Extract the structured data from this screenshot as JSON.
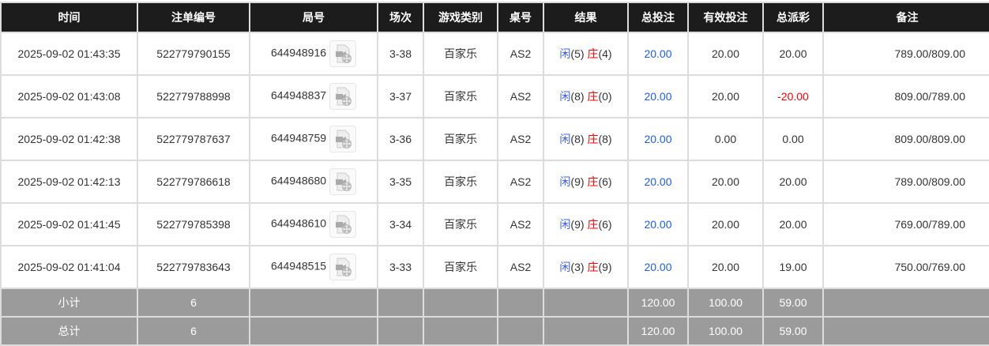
{
  "headers": [
    "时间",
    "注单编号",
    "局号",
    "场次",
    "游戏类别",
    "桌号",
    "结果",
    "总投注",
    "有效投注",
    "总派彩",
    "备注"
  ],
  "rows": [
    {
      "time": "2025-09-02 01:43:35",
      "bet_id": "522779790155",
      "round_id": "644948916",
      "shoe": "3-38",
      "game": "百家乐",
      "table": "AS2",
      "player_label": "闲",
      "player": "(5)",
      "banker_label": "庄",
      "banker": "(4)",
      "total_bet": "20.00",
      "valid_bet": "20.00",
      "payout": "20.00",
      "payout_negative": false,
      "remark": "789.00/809.00"
    },
    {
      "time": "2025-09-02 01:43:08",
      "bet_id": "522779788998",
      "round_id": "644948837",
      "shoe": "3-37",
      "game": "百家乐",
      "table": "AS2",
      "player_label": "闲",
      "player": "(8)",
      "banker_label": "庄",
      "banker": "(0)",
      "total_bet": "20.00",
      "valid_bet": "20.00",
      "payout": "-20.00",
      "payout_negative": true,
      "remark": "809.00/789.00"
    },
    {
      "time": "2025-09-02 01:42:38",
      "bet_id": "522779787637",
      "round_id": "644948759",
      "shoe": "3-36",
      "game": "百家乐",
      "table": "AS2",
      "player_label": "闲",
      "player": "(8)",
      "banker_label": "庄",
      "banker": "(8)",
      "total_bet": "20.00",
      "valid_bet": "0.00",
      "payout": "0.00",
      "payout_negative": false,
      "remark": "809.00/809.00"
    },
    {
      "time": "2025-09-02 01:42:13",
      "bet_id": "522779786618",
      "round_id": "644948680",
      "shoe": "3-35",
      "game": "百家乐",
      "table": "AS2",
      "player_label": "闲",
      "player": "(9)",
      "banker_label": "庄",
      "banker": "(6)",
      "total_bet": "20.00",
      "valid_bet": "20.00",
      "payout": "20.00",
      "payout_negative": false,
      "remark": "789.00/809.00"
    },
    {
      "time": "2025-09-02 01:41:45",
      "bet_id": "522779785398",
      "round_id": "644948610",
      "shoe": "3-34",
      "game": "百家乐",
      "table": "AS2",
      "player_label": "闲",
      "player": "(9)",
      "banker_label": "庄",
      "banker": "(6)",
      "total_bet": "20.00",
      "valid_bet": "20.00",
      "payout": "20.00",
      "payout_negative": false,
      "remark": "769.00/789.00"
    },
    {
      "time": "2025-09-02 01:41:04",
      "bet_id": "522779783643",
      "round_id": "644948515",
      "shoe": "3-33",
      "game": "百家乐",
      "table": "AS2",
      "player_label": "闲",
      "player": "(3)",
      "banker_label": "庄",
      "banker": "(9)",
      "total_bet": "20.00",
      "valid_bet": "20.00",
      "payout": "19.00",
      "payout_negative": false,
      "remark": "750.00/769.00"
    }
  ],
  "summary": [
    {
      "label": "小计",
      "count": "6",
      "total_bet": "120.00",
      "valid_bet": "100.00",
      "payout": "59.00"
    },
    {
      "label": "总计",
      "count": "6",
      "total_bet": "120.00",
      "valid_bet": "100.00",
      "payout": "59.00"
    }
  ],
  "colors": {
    "header_bg": "#1c1c1c",
    "summary_bg": "#9b9b9b",
    "bet_blue": "#1a5cff",
    "negative_red": "#ff0000"
  },
  "icons": {
    "replay": "video-replay-icon"
  }
}
